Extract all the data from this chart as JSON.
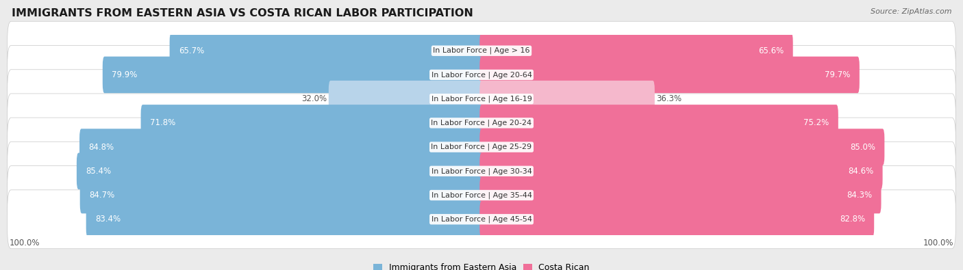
{
  "title": "IMMIGRANTS FROM EASTERN ASIA VS COSTA RICAN LABOR PARTICIPATION",
  "source": "Source: ZipAtlas.com",
  "categories": [
    "In Labor Force | Age > 16",
    "In Labor Force | Age 20-64",
    "In Labor Force | Age 16-19",
    "In Labor Force | Age 20-24",
    "In Labor Force | Age 25-29",
    "In Labor Force | Age 30-34",
    "In Labor Force | Age 35-44",
    "In Labor Force | Age 45-54"
  ],
  "left_values": [
    65.7,
    79.9,
    32.0,
    71.8,
    84.8,
    85.4,
    84.7,
    83.4
  ],
  "right_values": [
    65.6,
    79.7,
    36.3,
    75.2,
    85.0,
    84.6,
    84.3,
    82.8
  ],
  "left_color": "#7ab4d8",
  "left_color_light": "#b8d4ea",
  "right_color": "#f07099",
  "right_color_light": "#f5b8cc",
  "bar_height": 0.72,
  "background_color": "#ebebeb",
  "row_bg_even": "#f7f7f7",
  "row_bg_odd": "#ffffff",
  "legend_left": "Immigrants from Eastern Asia",
  "legend_right": "Costa Rican",
  "max_val": 100.0,
  "title_fontsize": 11.5,
  "label_fontsize": 8.0,
  "value_fontsize": 8.5,
  "axis_fontsize": 8.5,
  "light_rows": [
    2
  ]
}
